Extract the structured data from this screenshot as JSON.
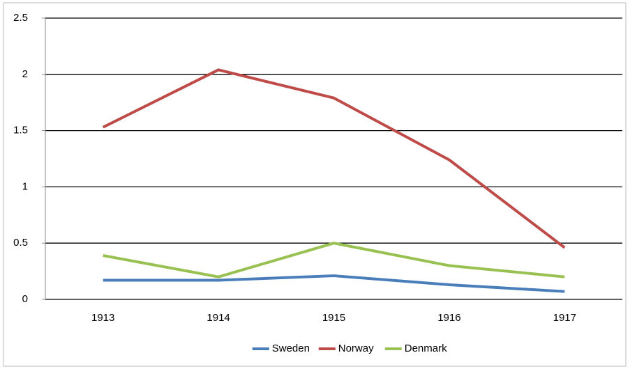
{
  "chart_data": {
    "type": "line",
    "categories": [
      "1913",
      "1914",
      "1915",
      "1916",
      "1917"
    ],
    "series": [
      {
        "name": "Sweden",
        "color": "#4a7ebb",
        "values": [
          0.17,
          0.17,
          0.21,
          0.13,
          0.07
        ]
      },
      {
        "name": "Norway",
        "color": "#be4b48",
        "values": [
          1.53,
          2.04,
          1.79,
          1.24,
          0.46
        ]
      },
      {
        "name": "Denmark",
        "color": "#98c152",
        "values": [
          0.39,
          0.2,
          0.5,
          0.3,
          0.2
        ]
      }
    ],
    "ylim": [
      0,
      2.5
    ],
    "yticks": [
      0,
      0.5,
      1,
      1.5,
      2,
      2.5
    ],
    "grid": true,
    "legend": "bottom"
  }
}
